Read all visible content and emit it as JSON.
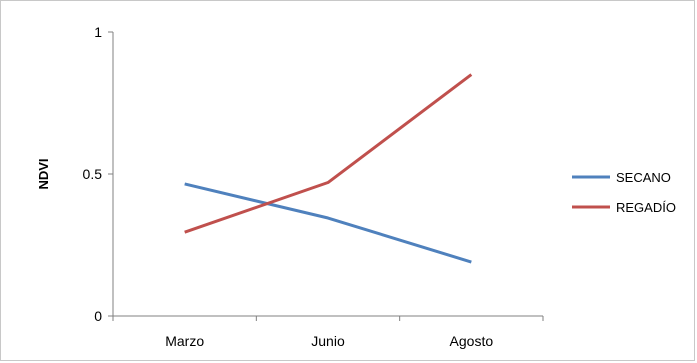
{
  "chart_data": {
    "type": "line",
    "title": "",
    "xlabel": "",
    "ylabel": "NDVI",
    "categories": [
      "Marzo",
      "Junio",
      "Agosto"
    ],
    "ylim": [
      0,
      1
    ],
    "yticks": [
      "0",
      "0.5",
      "1"
    ],
    "grid": false,
    "legend_position": "right",
    "series": [
      {
        "name": "SECANO",
        "color": "#4f81bd",
        "values": [
          0.465,
          0.345,
          0.19
        ]
      },
      {
        "name": "REGADÍO",
        "color": "#c0504d",
        "values": [
          0.295,
          0.47,
          0.85
        ]
      }
    ]
  }
}
